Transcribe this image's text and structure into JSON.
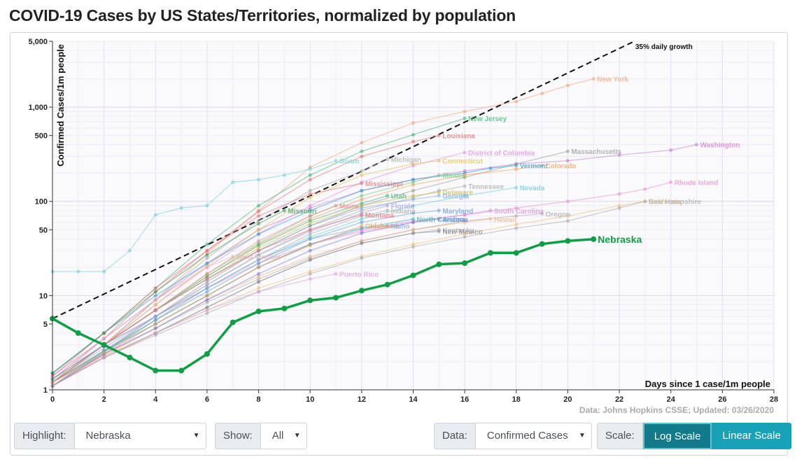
{
  "page": {
    "title": "COVID-19 Cases by US States/Territories, normalized by population"
  },
  "controls": {
    "highlight_label": "Highlight:",
    "highlight_value": "Nebraska",
    "show_label": "Show:",
    "show_value": "All",
    "data_label": "Data:",
    "data_value": "Confirmed Cases",
    "scale_label": "Scale:",
    "log_label": "Log Scale",
    "linear_label": "Linear Scale",
    "active_scale": "Log Scale"
  },
  "chart_data": {
    "type": "line",
    "title": "",
    "xlabel": "Days since 1 case/1m people",
    "ylabel": "Confirmed Cases/1m people",
    "xlim": [
      0,
      28
    ],
    "ylim": [
      1,
      5000
    ],
    "y_scale": "log",
    "x_ticks": [
      0,
      2,
      4,
      6,
      8,
      10,
      12,
      14,
      16,
      18,
      20,
      22,
      24,
      26,
      28
    ],
    "y_ticks": [
      1,
      5,
      10,
      50,
      100,
      500,
      1000,
      5000
    ],
    "y_tick_labels": [
      "1",
      "5",
      "10",
      "50",
      "100",
      "500",
      "1,000",
      "5,000"
    ],
    "source": "Data: Johns Hopkins CSSE; Updated: 03/26/2020",
    "reference_line": {
      "label": "35% daily growth",
      "start_value": 5.7,
      "daily_growth": 0.35
    },
    "highlight": {
      "name": "Nebraska",
      "color": "#0e9f45",
      "x": [
        0,
        1,
        2,
        3,
        4,
        5,
        6,
        7,
        8,
        9,
        10,
        11,
        12,
        13,
        14,
        15,
        16,
        17,
        18,
        19,
        20,
        21
      ],
      "values": [
        5.7,
        4.0,
        3.0,
        2.2,
        1.6,
        1.6,
        2.4,
        5.2,
        6.8,
        7.3,
        8.9,
        9.5,
        11.3,
        13.1,
        16.4,
        21.5,
        22.1,
        28.4,
        28.4,
        35.3,
        38.0,
        39.7
      ]
    },
    "series": [
      {
        "name": "New York",
        "color": "#f4a276",
        "x": [
          0,
          2,
          4,
          6,
          8,
          10,
          12,
          14,
          16,
          18,
          19,
          20,
          21
        ],
        "values": [
          1.2,
          3,
          9,
          28,
          80,
          230,
          420,
          680,
          900,
          1150,
          1400,
          1700,
          2000
        ]
      },
      {
        "name": "New Jersey",
        "color": "#3cb371",
        "x": [
          0,
          2,
          4,
          6,
          8,
          10,
          12,
          14,
          16
        ],
        "values": [
          1.5,
          4,
          12,
          35,
          90,
          190,
          340,
          510,
          760
        ]
      },
      {
        "name": "Louisiana",
        "color": "#e37373",
        "x": [
          0,
          2,
          4,
          6,
          8,
          10,
          12,
          14,
          15
        ],
        "values": [
          1.3,
          3.5,
          11,
          30,
          78,
          170,
          300,
          430,
          500
        ]
      },
      {
        "name": "Washington",
        "color": "#c97ad6",
        "x": [
          0,
          2,
          4,
          6,
          8,
          10,
          12,
          14,
          16,
          18,
          20,
          22,
          24,
          25
        ],
        "values": [
          1.4,
          3.5,
          9,
          22,
          50,
          85,
          130,
          170,
          210,
          250,
          270,
          310,
          350,
          400
        ]
      },
      {
        "name": "District of Columbia",
        "color": "#e68ae0",
        "x": [
          0,
          2,
          4,
          6,
          8,
          10,
          12,
          14,
          16
        ],
        "values": [
          1.2,
          3,
          8,
          20,
          45,
          90,
          160,
          240,
          330
        ]
      },
      {
        "name": "Massachusetts",
        "color": "#999999",
        "x": [
          0,
          2,
          4,
          6,
          8,
          10,
          12,
          14,
          16,
          18,
          20
        ],
        "values": [
          1.1,
          2.5,
          6,
          14,
          30,
          55,
          90,
          130,
          180,
          250,
          340
        ]
      },
      {
        "name": "Guam",
        "color": "#6fd0d8",
        "x": [
          0,
          1,
          2,
          3,
          4,
          5,
          6,
          7,
          8,
          9,
          10,
          11
        ],
        "values": [
          18,
          18,
          18,
          30,
          72,
          85,
          90,
          160,
          170,
          190,
          220,
          270
        ]
      },
      {
        "name": "Michigan",
        "color": "#aaaaaa",
        "x": [
          0,
          2,
          4,
          6,
          8,
          10,
          12,
          13
        ],
        "values": [
          1.2,
          3,
          9,
          25,
          62,
          130,
          210,
          280
        ]
      },
      {
        "name": "Connecticut",
        "color": "#e3c04a",
        "x": [
          0,
          2,
          4,
          6,
          8,
          10,
          12,
          14,
          15
        ],
        "values": [
          1.3,
          3,
          8,
          21,
          50,
          110,
          190,
          250,
          270
        ]
      },
      {
        "name": "Vermont",
        "color": "#2d9ed8",
        "x": [
          0,
          2,
          4,
          6,
          8,
          10,
          12,
          14,
          16,
          17,
          18
        ],
        "values": [
          1.5,
          4,
          10,
          22,
          45,
          80,
          130,
          170,
          200,
          225,
          240
        ]
      },
      {
        "name": "Colorado",
        "color": "#f0a050",
        "x": [
          0,
          2,
          4,
          6,
          8,
          10,
          12,
          14,
          16,
          18,
          19
        ],
        "values": [
          1.3,
          3,
          7,
          16,
          35,
          65,
          105,
          150,
          190,
          220,
          240
        ]
      },
      {
        "name": "Illinois",
        "color": "#6fc97a",
        "x": [
          0,
          2,
          4,
          6,
          8,
          10,
          12,
          14,
          15
        ],
        "values": [
          1.2,
          3,
          7,
          17,
          36,
          70,
          115,
          160,
          190
        ]
      },
      {
        "name": "Mississippi",
        "color": "#e37373",
        "x": [
          0,
          2,
          4,
          6,
          8,
          10,
          12
        ],
        "values": [
          1.4,
          4,
          12,
          30,
          70,
          120,
          155
        ]
      },
      {
        "name": "Rhode Island",
        "color": "#f08ad0",
        "x": [
          0,
          2,
          4,
          6,
          8,
          10,
          12,
          14,
          16,
          18,
          20,
          22,
          23,
          24
        ],
        "values": [
          1.3,
          3,
          6,
          12,
          22,
          35,
          48,
          60,
          72,
          85,
          100,
          120,
          135,
          160
        ]
      },
      {
        "name": "Tennessee",
        "color": "#aaaaaa",
        "x": [
          0,
          2,
          4,
          6,
          8,
          10,
          12,
          14,
          15,
          16
        ],
        "values": [
          1.1,
          2.6,
          6,
          13,
          27,
          50,
          80,
          110,
          130,
          145
        ]
      },
      {
        "name": "Utah",
        "color": "#3cb371",
        "x": [
          0,
          2,
          4,
          6,
          8,
          10,
          12,
          13
        ],
        "values": [
          1.3,
          3,
          7,
          16,
          34,
          62,
          95,
          115
        ]
      },
      {
        "name": "Delaware",
        "color": "#c9c040",
        "x": [
          0,
          2,
          4,
          6,
          8,
          10,
          12,
          14,
          15
        ],
        "values": [
          1.2,
          3,
          7,
          15,
          32,
          58,
          90,
          115,
          125
        ]
      },
      {
        "name": "Nevada",
        "color": "#5fd0d8",
        "x": [
          0,
          2,
          4,
          6,
          8,
          10,
          12,
          14,
          16,
          18
        ],
        "values": [
          1.2,
          2.5,
          5.5,
          12,
          24,
          42,
          65,
          90,
          115,
          140
        ]
      },
      {
        "name": "Georgia",
        "color": "#7aaad8",
        "x": [
          0,
          2,
          4,
          6,
          8,
          10,
          12,
          14,
          15
        ],
        "values": [
          1.3,
          3,
          7,
          15,
          30,
          55,
          85,
          105,
          115
        ]
      },
      {
        "name": "Maine",
        "color": "#e68a8a",
        "x": [
          0,
          2,
          4,
          6,
          8,
          10,
          11
        ],
        "values": [
          1.2,
          3,
          7,
          17,
          38,
          70,
          90
        ]
      },
      {
        "name": "Florida",
        "color": "#a0a0d8",
        "x": [
          0,
          2,
          4,
          6,
          8,
          10,
          12,
          13
        ],
        "values": [
          1.2,
          2.8,
          6,
          13,
          27,
          48,
          75,
          90
        ]
      },
      {
        "name": "Indiana",
        "color": "#aaaaaa",
        "x": [
          0,
          2,
          4,
          6,
          8,
          10,
          12,
          13
        ],
        "values": [
          1.1,
          2.5,
          5.5,
          12,
          24,
          45,
          70,
          80
        ]
      },
      {
        "name": "Maryland",
        "color": "#5fa0d8",
        "x": [
          0,
          2,
          4,
          6,
          8,
          10,
          12,
          14,
          15
        ],
        "values": [
          1.2,
          2.6,
          5.5,
          11,
          22,
          40,
          60,
          75,
          80
        ]
      },
      {
        "name": "South Carolina",
        "color": "#d88ad8",
        "x": [
          0,
          2,
          4,
          6,
          8,
          10,
          12,
          14,
          16,
          17
        ],
        "values": [
          1.1,
          2.4,
          5,
          10,
          20,
          35,
          50,
          62,
          72,
          80
        ]
      },
      {
        "name": "Oregon",
        "color": "#aaaaaa",
        "x": [
          0,
          2,
          4,
          6,
          8,
          10,
          12,
          14,
          16,
          18,
          19
        ],
        "values": [
          1.2,
          2.4,
          4.5,
          8.5,
          15,
          25,
          38,
          50,
          62,
          70,
          74
        ]
      },
      {
        "name": "California",
        "color": "#f0c070",
        "x": [
          0,
          2,
          4,
          6,
          8,
          10,
          12,
          14,
          16,
          18,
          20,
          22,
          23
        ],
        "values": [
          1.2,
          2.3,
          4,
          7,
          12,
          18,
          26,
          35,
          45,
          57,
          70,
          90,
          100
        ]
      },
      {
        "name": "New Hampshire",
        "color": "#aaaaaa",
        "x": [
          0,
          2,
          4,
          6,
          8,
          10,
          12,
          14,
          16,
          18,
          20,
          22,
          23
        ],
        "values": [
          1.1,
          2.2,
          3.8,
          6.5,
          11,
          17,
          25,
          33,
          42,
          52,
          62,
          85,
          100
        ]
      },
      {
        "name": "Missouri",
        "color": "#3c9a50",
        "x": [
          0,
          2,
          4,
          6,
          8,
          9
        ],
        "values": [
          1.5,
          4,
          11,
          27,
          58,
          80
        ]
      },
      {
        "name": "Montana",
        "color": "#e37373",
        "x": [
          0,
          2,
          4,
          6,
          8,
          10,
          12
        ],
        "values": [
          1.2,
          3,
          7,
          15,
          30,
          50,
          72
        ]
      },
      {
        "name": "Hawaii",
        "color": "#f0b080",
        "x": [
          0,
          2,
          4,
          6,
          8,
          10,
          12,
          14,
          16,
          17
        ],
        "values": [
          1.1,
          2.3,
          4.5,
          9,
          16,
          26,
          38,
          50,
          60,
          65
        ]
      },
      {
        "name": "North Carolina",
        "color": "#3cb3a0",
        "x": [
          0,
          2,
          4,
          6,
          8,
          10,
          12,
          14
        ],
        "values": [
          1.2,
          2.6,
          5,
          10,
          20,
          35,
          52,
          65
        ]
      },
      {
        "name": "Arizona",
        "color": "#7a7ad8",
        "x": [
          0,
          2,
          4,
          6,
          8,
          10,
          12,
          14,
          15
        ],
        "values": [
          1.1,
          2.4,
          4.5,
          9,
          17,
          30,
          46,
          60,
          65
        ]
      },
      {
        "name": "Oklahoma",
        "color": "#e6a050",
        "x": [
          0,
          2,
          4,
          6,
          8,
          10,
          12
        ],
        "values": [
          1.2,
          2.5,
          5,
          10,
          20,
          34,
          55
        ]
      },
      {
        "name": "Idaho",
        "color": "#7aaad8",
        "x": [
          0,
          2,
          4,
          6,
          8,
          10,
          12,
          13
        ],
        "values": [
          1.3,
          3,
          6,
          12,
          24,
          40,
          52,
          55
        ]
      },
      {
        "name": "Kentucky",
        "color": "#aaaaaa",
        "x": [
          0,
          2,
          4,
          6,
          8,
          10,
          12,
          14,
          15
        ],
        "values": [
          1.1,
          2.2,
          4,
          7.5,
          14,
          24,
          36,
          46,
          50
        ]
      },
      {
        "name": "New Mexico",
        "color": "#8a8a8a",
        "x": [
          0,
          2,
          4,
          6,
          8,
          10,
          12,
          14,
          15
        ],
        "values": [
          1.1,
          2.2,
          4,
          7.5,
          14,
          24,
          36,
          46,
          48
        ]
      },
      {
        "name": "West Virginia",
        "color": "#e6b0b0",
        "x": [
          0,
          2,
          4,
          6,
          7
        ],
        "values": [
          1.2,
          3.5,
          9,
          20,
          26
        ]
      },
      {
        "name": "Puerto Rico",
        "color": "#d8a0d8",
        "x": [
          0,
          2,
          4,
          6,
          8,
          10,
          11
        ],
        "values": [
          1.1,
          2.2,
          4,
          7,
          11,
          15,
          17
        ]
      }
    ]
  }
}
